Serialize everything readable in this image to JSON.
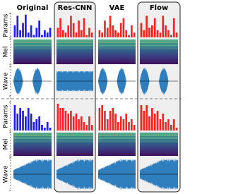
{
  "columns": [
    "Original",
    "Res-CNN",
    "VAE",
    "Flow"
  ],
  "row_labels": [
    "Params",
    "Mel",
    "Wave"
  ],
  "params_ylim": [
    0,
    1
  ],
  "colors": {
    "original": "#1c1cff",
    "generated": "#ff2020",
    "wave": "#2f7fbf"
  },
  "samples": [
    {
      "params": [
        [
          0.5,
          0.9,
          0.3,
          0.6,
          0.95,
          0.2,
          0.5,
          0.1,
          0.4,
          0.7,
          0.1,
          0.3,
          0.2,
          0.4
        ],
        [
          0.4,
          0.8,
          0.3,
          0.2,
          0.5,
          0.9,
          0.6,
          0.2,
          0.7,
          0.3,
          0.8,
          0.1,
          0.4,
          0.2
        ],
        [
          0.3,
          0.2,
          0.7,
          0.4,
          0.9,
          0.5,
          0.3,
          0.2,
          0.6,
          0.8,
          0.3,
          0.1,
          0.5,
          0.2
        ],
        [
          0.6,
          0.3,
          0.9,
          0.4,
          0.5,
          0.8,
          0.3,
          0.2,
          0.9,
          0.5,
          0.3,
          0.1,
          0.8,
          0.2
        ]
      ]
    },
    {
      "params": [
        [
          0.9,
          0.6,
          0.8,
          0.7,
          0.5,
          0.8,
          0.6,
          0.3,
          0.4,
          0.5,
          0.2,
          0.1,
          0.3,
          0.1
        ],
        [
          0.95,
          0.8,
          0.8,
          0.7,
          0.6,
          0.7,
          0.5,
          0.6,
          0.4,
          0.5,
          0.3,
          0.2,
          0.5,
          0.2
        ],
        [
          0.8,
          0.9,
          0.7,
          0.4,
          0.7,
          0.8,
          0.6,
          0.3,
          0.5,
          0.4,
          0.6,
          0.3,
          0.4,
          0.2
        ],
        [
          0.9,
          0.7,
          0.9,
          0.5,
          0.8,
          0.6,
          0.7,
          0.4,
          0.6,
          0.3,
          0.4,
          0.2,
          0.4,
          0.1
        ]
      ]
    }
  ]
}
